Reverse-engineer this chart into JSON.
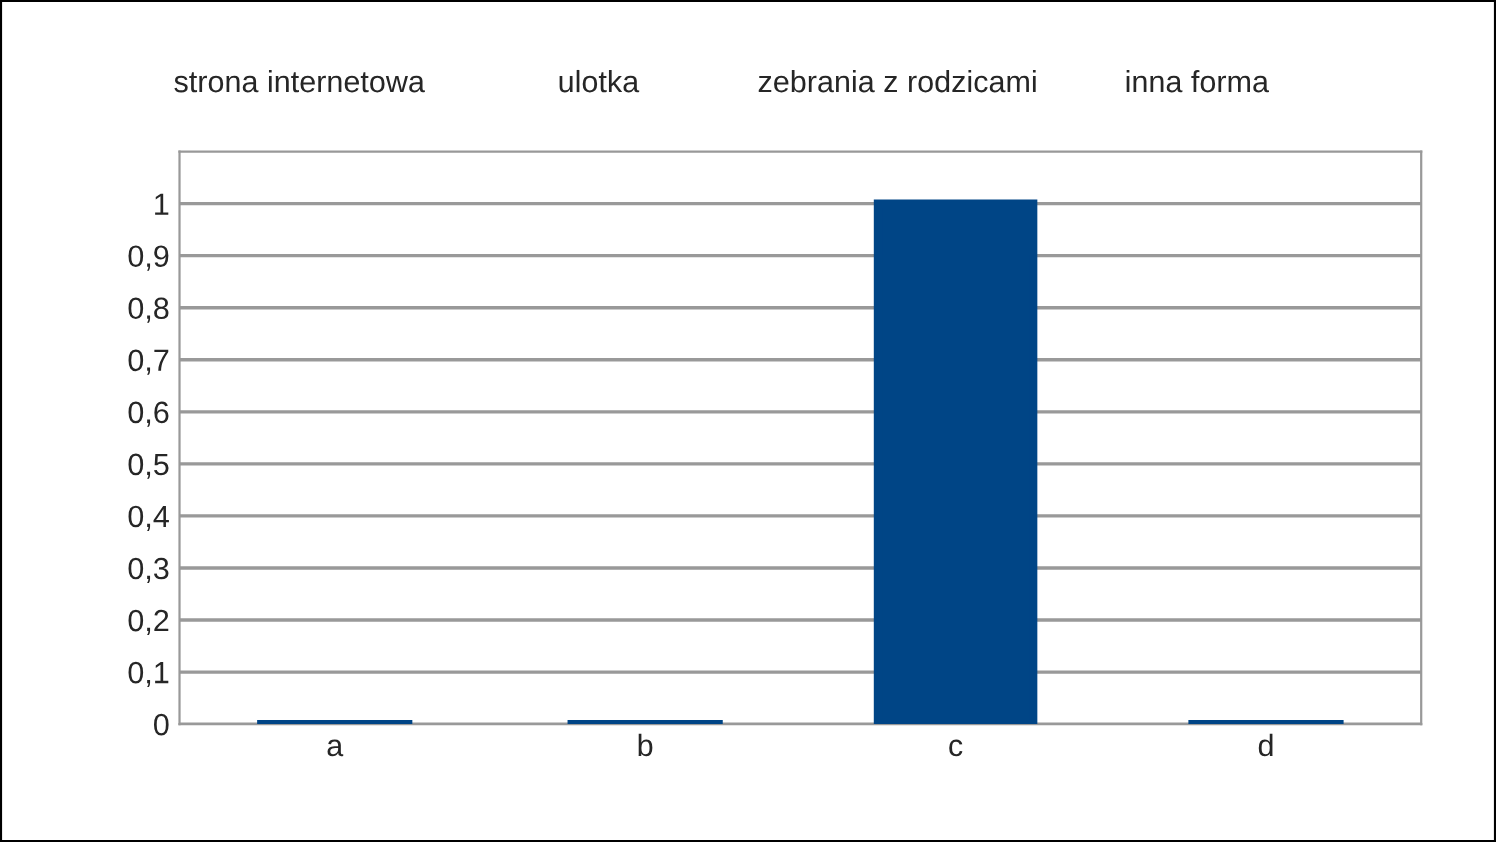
{
  "chart_data": {
    "type": "bar",
    "categories": [
      "a",
      "b",
      "c",
      "d"
    ],
    "values": [
      0,
      0,
      1,
      0
    ],
    "color": "#004586",
    "ylim": [
      0,
      1.1
    ],
    "yticks": [
      0,
      {
        "value": 0.1,
        "label": "0,1"
      },
      {
        "value": 0.2,
        "label": "0,2"
      },
      {
        "value": 0.3,
        "label": "0,3"
      },
      {
        "value": 0.4,
        "label": "0,4"
      },
      {
        "value": 0.5,
        "label": "0,5"
      },
      {
        "value": 0.6,
        "label": "0,6"
      },
      {
        "value": 0.7,
        "label": "0,7"
      },
      {
        "value": 0.8,
        "label": "0,8"
      },
      {
        "value": 0.9,
        "label": "0,9"
      },
      1
    ],
    "grid": "y",
    "annotations": [
      "strona internetowa",
      "ulotka",
      "zebrania z rodzicami",
      "inna forma"
    ]
  }
}
